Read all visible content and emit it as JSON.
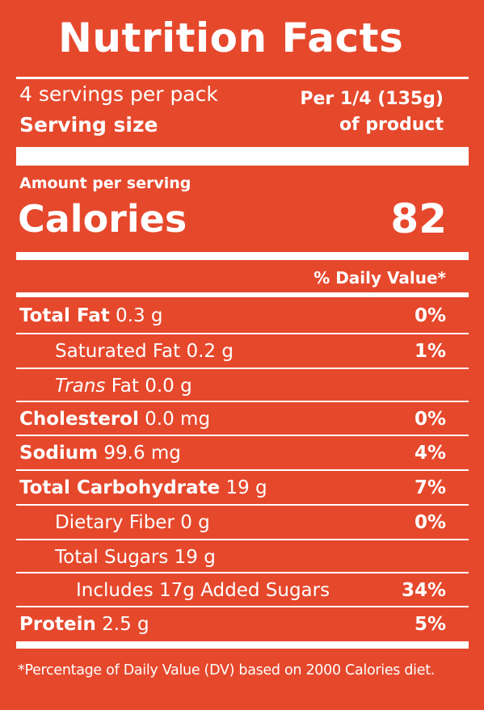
{
  "title": "Nutrition Facts",
  "servings": {
    "per_pack": "4 servings per pack",
    "serving_size": "Serving size",
    "per_line1": "Per 1/4 (135g)",
    "per_line2": "of product"
  },
  "calories": {
    "amount_per_serving": "Amount per serving",
    "label": "Calories",
    "value": "82"
  },
  "daily_value_header": "% Daily Value*",
  "rows": [
    {
      "label": "Total Fat",
      "amount": "0.3 g",
      "dv": "0%"
    },
    {
      "label": "Saturated Fat",
      "amount": "0.2 g",
      "dv": "1%"
    },
    {
      "label_italic": "Trans",
      "label": "Fat",
      "amount": "0.0 g"
    },
    {
      "label": "Cholesterol",
      "amount": "0.0 mg",
      "dv": "0%"
    },
    {
      "label": "Sodium",
      "amount": "99.6 mg",
      "dv": "4%"
    },
    {
      "label": "Total Carbohydrate",
      "amount": "19 g",
      "dv": "7%"
    },
    {
      "label": "Dietary Fiber",
      "amount": "0 g",
      "dv": "0%"
    },
    {
      "label": "Total Sugars",
      "amount": "19 g"
    },
    {
      "label": "Includes 17g Added Sugars",
      "dv": "34%"
    },
    {
      "label": "Protein",
      "amount": "2.5 g",
      "dv": "5%"
    }
  ],
  "footnote": "*Percentage of Daily Value (DV) based on 2000 Calories diet."
}
